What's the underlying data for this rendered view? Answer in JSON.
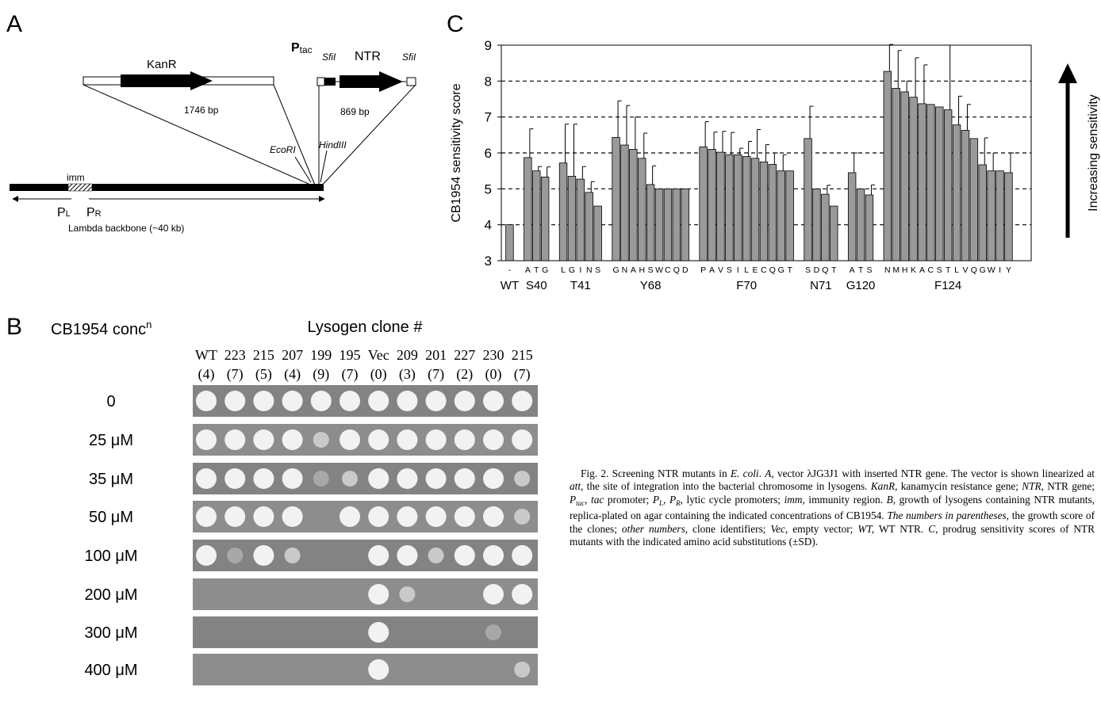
{
  "panel_a": {
    "letter": "A",
    "kanr": "KanR",
    "kanr_size": "1746 bp",
    "ptac_p": "P",
    "ptac_sub": "tac",
    "sfi1": "SfiI",
    "ntr": "NTR",
    "sfi2": "SfiI",
    "ntr_size": "869 bp",
    "ecori": "EcoRI",
    "hindiii": "HindIII",
    "imm": "imm",
    "pl_p": "P",
    "pl_sub": "L",
    "pr_p": "P",
    "pr_sub": "R",
    "backbone": "Lambda backbone (~40 kb)"
  },
  "panel_b": {
    "letter": "B",
    "conc_label": "CB1954 conc",
    "conc_sup": "n",
    "title": "Lysogen clone #",
    "clones": [
      "WT",
      "223",
      "215",
      "207",
      "199",
      "195",
      "Vec",
      "209",
      "201",
      "227",
      "230",
      "215"
    ],
    "scores": [
      "(4)",
      "(7)",
      "(5)",
      "(4)",
      "(9)",
      "(7)",
      "(0)",
      "(3)",
      "(7)",
      "(2)",
      "(0)",
      "(7)"
    ],
    "concentrations": [
      "0",
      "25 μM",
      "35 μM",
      "50 μM",
      "100 μM",
      "200 μM",
      "300 μM",
      "400 μM"
    ]
  },
  "chart_data": {
    "type": "bar",
    "panel_letter": "C",
    "y_label": "CB1954 sensitivity score",
    "annotation": "Increasing sensitivity",
    "ylim": [
      3,
      9
    ],
    "yticks": [
      3,
      4,
      5,
      6,
      7,
      8,
      9
    ],
    "grid": true,
    "color": "#9a9a9a",
    "groups": [
      {
        "name": "WT",
        "categories": [
          "-"
        ],
        "values": [
          4.0
        ],
        "errors": [
          null
        ]
      },
      {
        "name": "S40",
        "categories": [
          "A",
          "T",
          "G"
        ],
        "values": [
          5.87,
          5.5,
          5.33
        ],
        "errors": [
          0.8,
          0.12,
          0.28
        ]
      },
      {
        "name": "T41",
        "categories": [
          "L",
          "G",
          "I",
          "N",
          "S"
        ],
        "values": [
          5.72,
          5.35,
          5.27,
          4.9,
          4.52
        ],
        "errors": [
          1.08,
          1.45,
          0.35,
          0.3,
          null
        ]
      },
      {
        "name": "Y68",
        "categories": [
          "G",
          "N",
          "A",
          "H",
          "S",
          "W",
          "C",
          "Q",
          "D"
        ],
        "values": [
          6.43,
          6.22,
          6.1,
          5.85,
          5.12,
          5.0,
          5.0,
          5.0,
          5.0
        ],
        "errors": [
          1.02,
          1.1,
          0.9,
          0.7,
          0.52,
          null,
          null,
          null,
          null
        ]
      },
      {
        "name": "F70",
        "categories": [
          "P",
          "A",
          "V",
          "S",
          "I",
          "L",
          "E",
          "C",
          "Q",
          "G",
          "T"
        ],
        "values": [
          6.17,
          6.1,
          6.02,
          5.95,
          5.95,
          5.9,
          5.85,
          5.75,
          5.68,
          5.5,
          5.5
        ],
        "errors": [
          0.7,
          0.48,
          0.58,
          0.62,
          0.18,
          0.42,
          0.8,
          0.48,
          0.32,
          0.45,
          null
        ]
      },
      {
        "name": "N71",
        "categories": [
          "S",
          "D",
          "Q",
          "T"
        ],
        "values": [
          6.4,
          5.0,
          4.85,
          4.52
        ],
        "errors": [
          0.9,
          null,
          0.25,
          null
        ]
      },
      {
        "name": "G120",
        "categories": [
          "A",
          "T",
          "S"
        ],
        "values": [
          5.45,
          5.0,
          4.83
        ],
        "errors": [
          0.55,
          null,
          0.28
        ]
      },
      {
        "name": "F124",
        "categories": [
          "N",
          "M",
          "H",
          "K",
          "A",
          "C",
          "S",
          "T",
          "L",
          "V",
          "Q",
          "G",
          "W",
          "I",
          "Y"
        ],
        "values": [
          8.27,
          7.8,
          7.7,
          7.55,
          7.37,
          7.35,
          7.28,
          7.2,
          6.78,
          6.63,
          6.4,
          5.67,
          5.5,
          5.5,
          5.45
        ],
        "errors": [
          0.75,
          1.05,
          0.3,
          1.1,
          1.08,
          null,
          null,
          1.8,
          0.8,
          0.72,
          null,
          0.75,
          0.5,
          null,
          0.55
        ]
      }
    ]
  },
  "caption": [
    {
      "text": "Fig. 2. Screening NTR mutants in ",
      "style": "n"
    },
    {
      "text": "E. coli",
      "style": "i"
    },
    {
      "text": ". ",
      "style": "n"
    },
    {
      "text": "A,",
      "style": "i"
    },
    {
      "text": " vector λJG3J1 with inserted NTR gene. The vector is shown linearized at ",
      "style": "n"
    },
    {
      "text": "att",
      "style": "i"
    },
    {
      "text": ", the site of integration into the bacterial chromosome in lysogens. ",
      "style": "n"
    },
    {
      "text": "KanR,",
      "style": "i"
    },
    {
      "text": " kanamycin resistance gene; ",
      "style": "n"
    },
    {
      "text": "NTR,",
      "style": "i"
    },
    {
      "text": " NTR gene; ",
      "style": "n"
    },
    {
      "text": "P",
      "style": "i"
    },
    {
      "text": "tac",
      "style": "sub-i"
    },
    {
      "text": ", ",
      "style": "n"
    },
    {
      "text": "tac",
      "style": "i"
    },
    {
      "text": " promoter; ",
      "style": "n"
    },
    {
      "text": "P",
      "style": "i"
    },
    {
      "text": "L",
      "style": "sub-i"
    },
    {
      "text": ", ",
      "style": "i"
    },
    {
      "text": "P",
      "style": "i"
    },
    {
      "text": "R",
      "style": "sub-i"
    },
    {
      "text": ", lytic cycle promoters; ",
      "style": "n"
    },
    {
      "text": "imm,",
      "style": "i"
    },
    {
      "text": " immunity region. ",
      "style": "n"
    },
    {
      "text": "B,",
      "style": "i"
    },
    {
      "text": " growth of lysogens containing NTR mutants, replica-plated on agar containing the indicated concentrations of CB1954. ",
      "style": "n"
    },
    {
      "text": "The numbers in parentheses,",
      "style": "i"
    },
    {
      "text": " the growth score of the clones; ",
      "style": "n"
    },
    {
      "text": "other numbers,",
      "style": "i"
    },
    {
      "text": " clone identifiers; ",
      "style": "n"
    },
    {
      "text": "Vec,",
      "style": "i"
    },
    {
      "text": " empty vector; ",
      "style": "n"
    },
    {
      "text": "WT,",
      "style": "i"
    },
    {
      "text": " WT NTR. ",
      "style": "n"
    },
    {
      "text": "C,",
      "style": "i"
    },
    {
      "text": " prodrug sensitivity scores of NTR mutants with the indicated amino acid substitutions (±SD).",
      "style": "n"
    }
  ]
}
